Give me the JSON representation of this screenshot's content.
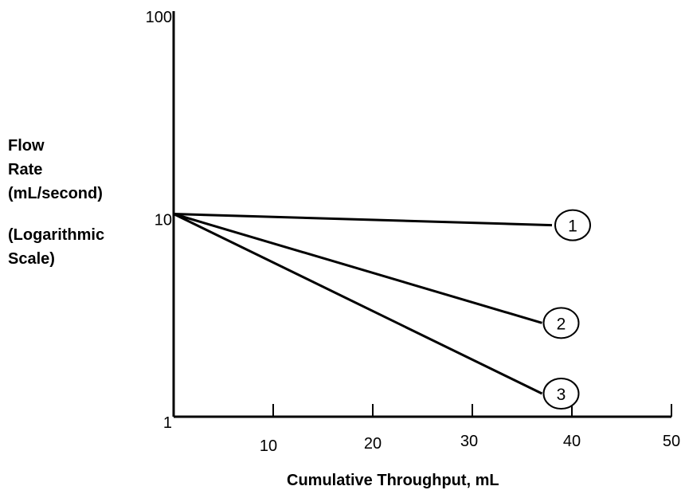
{
  "chart_data": {
    "type": "line",
    "title": "",
    "xlabel": "Cumulative Throughput, mL",
    "ylabel_lines": [
      "Flow",
      "Rate",
      "(mL/second)"
    ],
    "ylabel_note_lines": [
      "(Logarithmic",
      "Scale)"
    ],
    "xlim": [
      0,
      50
    ],
    "ylim": [
      1,
      100
    ],
    "yscale": "log",
    "x_ticks": [
      10,
      20,
      30,
      40,
      50
    ],
    "x_tick_labels": [
      "10",
      "20",
      "30",
      "40",
      "50"
    ],
    "y_ticks": [
      1,
      10,
      100
    ],
    "y_tick_labels": [
      "1",
      "10",
      "100"
    ],
    "grid": false,
    "legend": "none",
    "series": [
      {
        "name": "1",
        "x": [
          0,
          38
        ],
        "y": [
          10,
          8.8
        ]
      },
      {
        "name": "2",
        "x": [
          0,
          37
        ],
        "y": [
          10,
          2.9
        ]
      },
      {
        "name": "3",
        "x": [
          0,
          37
        ],
        "y": [
          10,
          1.3
        ]
      }
    ],
    "colors": {
      "line": "#000000",
      "background": "#ffffff"
    }
  }
}
